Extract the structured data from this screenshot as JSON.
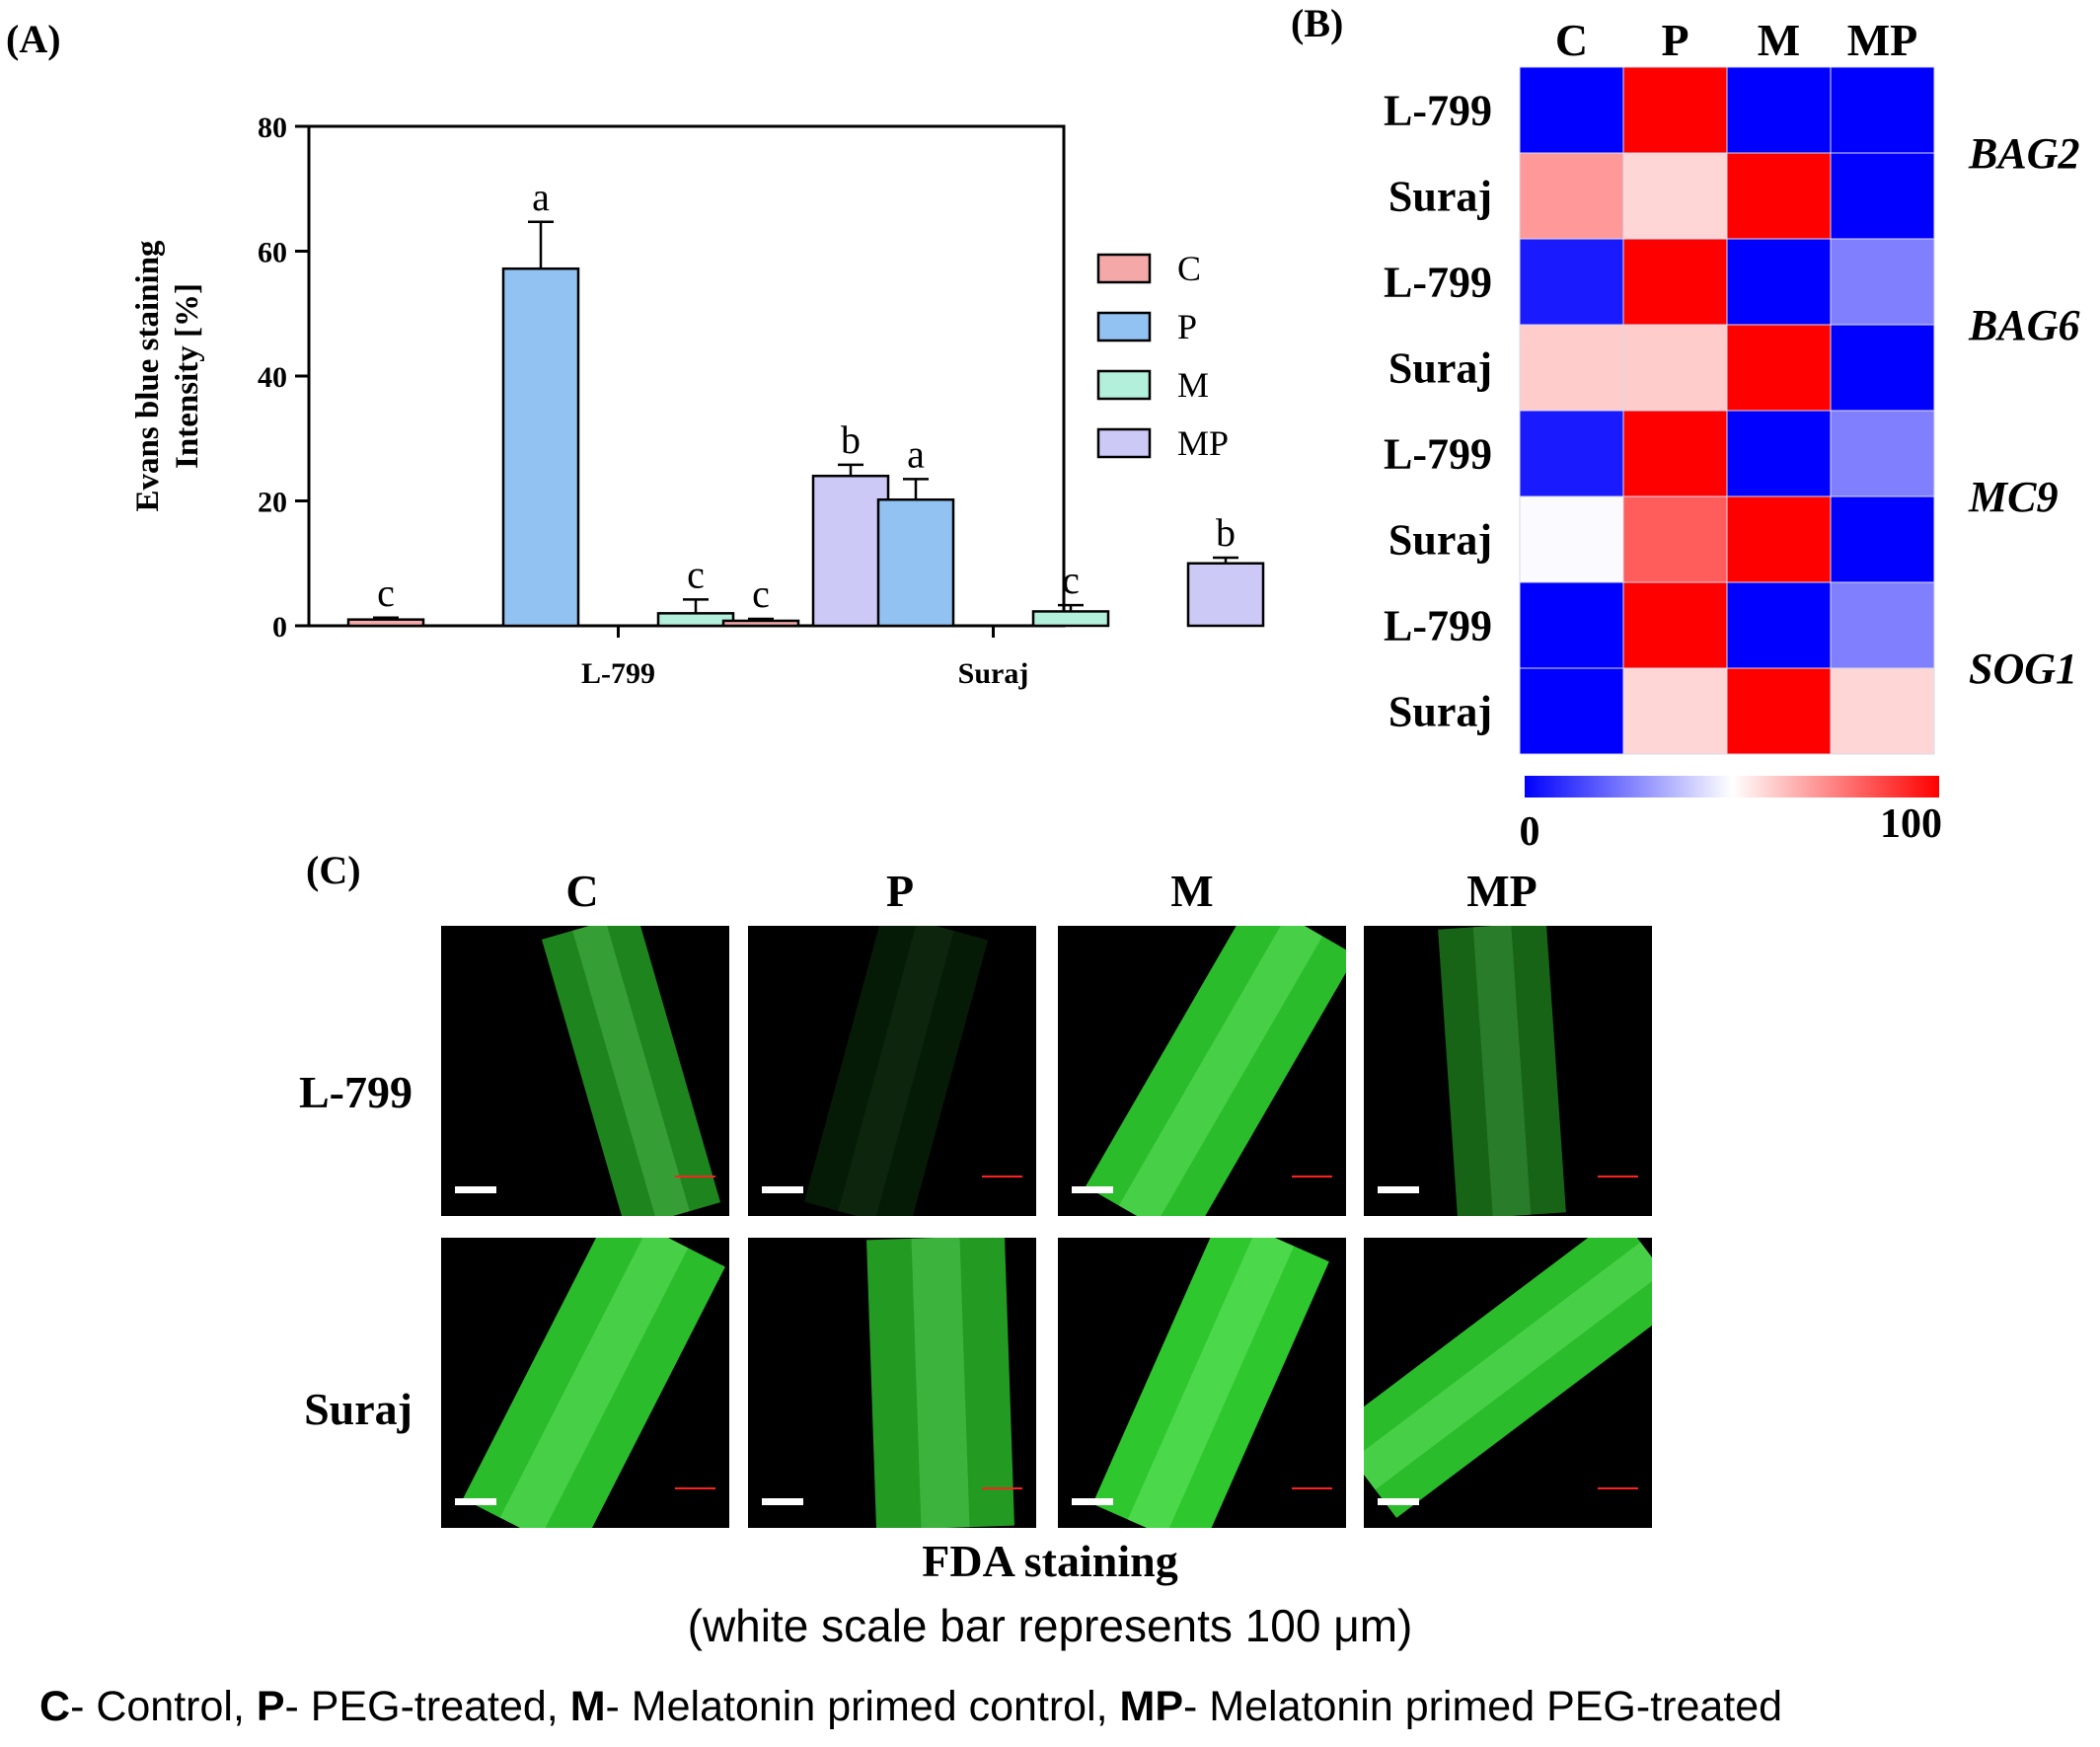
{
  "panels": {
    "a": "(A)",
    "b": "(B)",
    "c": "(C)"
  },
  "chart_data": [
    {
      "type": "bar",
      "ylabel_line1": "Evans blue staining",
      "ylabel_line2": "Intensity [%]",
      "categories": [
        "L-799",
        "Suraj"
      ],
      "ylim": [
        0,
        80
      ],
      "yticks": [
        0,
        20,
        40,
        60,
        80
      ],
      "series": [
        {
          "name": "C",
          "color": "#f4a8a8",
          "values": [
            1.0,
            0.8
          ],
          "errors": [
            0.3,
            0.3
          ],
          "letters": [
            "c",
            "c"
          ]
        },
        {
          "name": "P",
          "color": "#92c2f2",
          "values": [
            57.2,
            20.2
          ],
          "errors": [
            7.5,
            3.3
          ],
          "letters": [
            "a",
            "a"
          ]
        },
        {
          "name": "M",
          "color": "#b2f0dc",
          "values": [
            2.0,
            2.3
          ],
          "errors": [
            2.2,
            1.0
          ],
          "letters": [
            "c",
            "c"
          ]
        },
        {
          "name": "MP",
          "color": "#cdc9f7",
          "values": [
            24.0,
            10.0
          ],
          "errors": [
            1.8,
            0.9
          ],
          "letters": [
            "b",
            "b"
          ]
        }
      ],
      "legend_position": "right"
    },
    {
      "type": "heatmap",
      "columns": [
        "C",
        "P",
        "M",
        "MP"
      ],
      "rows": [
        "L-799",
        "Suraj",
        "L-799",
        "Suraj",
        "L-799",
        "Suraj",
        "L-799",
        "Suraj"
      ],
      "genes": [
        "BAG2",
        "BAG6",
        "MC9",
        "SOG1"
      ],
      "values": [
        [
          0,
          100,
          0,
          0
        ],
        [
          70,
          58,
          100,
          0
        ],
        [
          5,
          100,
          0,
          25
        ],
        [
          60,
          60,
          100,
          0
        ],
        [
          5,
          100,
          0,
          25
        ],
        [
          49,
          82,
          100,
          0
        ],
        [
          0,
          100,
          0,
          25
        ],
        [
          0,
          58,
          100,
          58
        ]
      ],
      "scale_min": "0",
      "scale_max": "100",
      "colors": {
        "low": "#0000ff",
        "mid": "#ffffff",
        "high": "#ff0000"
      }
    }
  ],
  "micrographs": {
    "columns": [
      "C",
      "P",
      "M",
      "MP"
    ],
    "rows": [
      "L-799",
      "Suraj"
    ],
    "fluorescence_color": "#33dd33",
    "title": "FDA staining",
    "subtitle": "(white scale bar represents 100 μm)"
  },
  "legend_line": [
    {
      "abbr": "C",
      "text": "- Control, "
    },
    {
      "abbr": "P",
      "text": "- PEG-treated, "
    },
    {
      "abbr": "M",
      "text": "- Melatonin primed control, "
    },
    {
      "abbr": "MP",
      "text": "- Melatonin primed PEG-treated"
    }
  ]
}
